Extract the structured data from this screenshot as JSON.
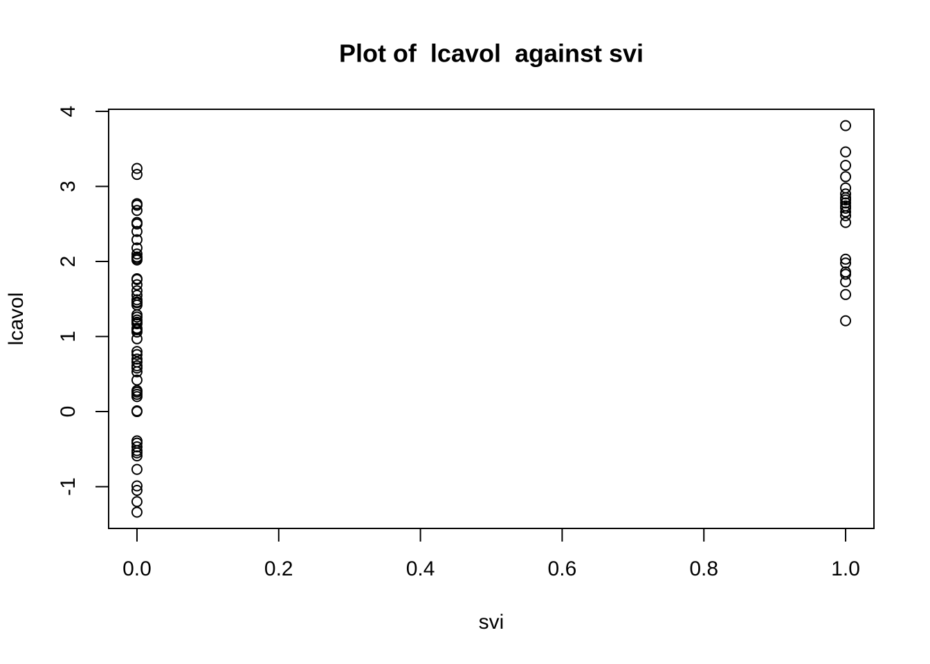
{
  "chart_data": {
    "type": "scatter",
    "title": "Plot of  lcavol  against svi",
    "x_label": "svi",
    "y_label": "lcavol",
    "color": "#000000",
    "x": [
      0,
      0,
      0,
      0,
      0,
      0,
      0,
      0,
      0,
      0,
      0,
      0,
      0,
      0,
      0,
      0,
      0,
      0,
      0,
      0,
      0,
      0,
      0,
      0,
      0,
      0,
      0,
      0,
      0,
      0,
      0,
      0,
      0,
      0,
      0,
      0,
      0,
      0,
      0,
      0,
      0,
      0,
      0,
      0,
      0,
      0,
      0,
      0,
      0,
      0,
      0,
      0,
      0,
      0,
      0,
      0,
      0,
      1,
      1,
      1,
      1,
      1,
      1,
      1,
      1,
      1,
      1,
      1,
      1,
      1,
      1,
      1,
      1,
      1,
      1,
      1,
      1,
      1
    ],
    "values": [
      3.24,
      3.16,
      2.77,
      2.75,
      2.68,
      2.52,
      2.5,
      2.4,
      2.29,
      2.18,
      2.1,
      2.06,
      2.04,
      2.02,
      1.77,
      1.76,
      1.69,
      1.61,
      1.55,
      1.49,
      1.46,
      1.45,
      1.42,
      1.29,
      1.26,
      1.22,
      1.19,
      1.17,
      1.11,
      1.09,
      1.06,
      0.97,
      0.8,
      0.76,
      0.7,
      0.66,
      0.61,
      0.58,
      0.53,
      0.42,
      0.28,
      0.26,
      0.23,
      0.2,
      0.01,
      0,
      -0.39,
      -0.42,
      -0.47,
      -0.52,
      -0.55,
      -0.59,
      -0.77,
      -0.99,
      -1.05,
      -1.2,
      -1.34,
      3.81,
      3.46,
      3.28,
      3.13,
      2.98,
      2.9,
      2.85,
      2.82,
      2.78,
      2.74,
      2.71,
      2.66,
      2.61,
      2.52,
      2.03,
      1.98,
      1.86,
      1.83,
      1.73,
      1.56,
      1.21
    ],
    "xlim": [
      -0.04,
      1.04
    ],
    "ylim": [
      -1.557,
      4.028
    ],
    "xticks": [
      {
        "value": 0,
        "label": "0.0"
      },
      0.2,
      0.4,
      0.6,
      0.8,
      {
        "value": 1,
        "label": "1.0"
      }
    ],
    "yticks": [
      -1,
      0,
      1,
      2,
      3,
      4
    ],
    "grid": false
  }
}
